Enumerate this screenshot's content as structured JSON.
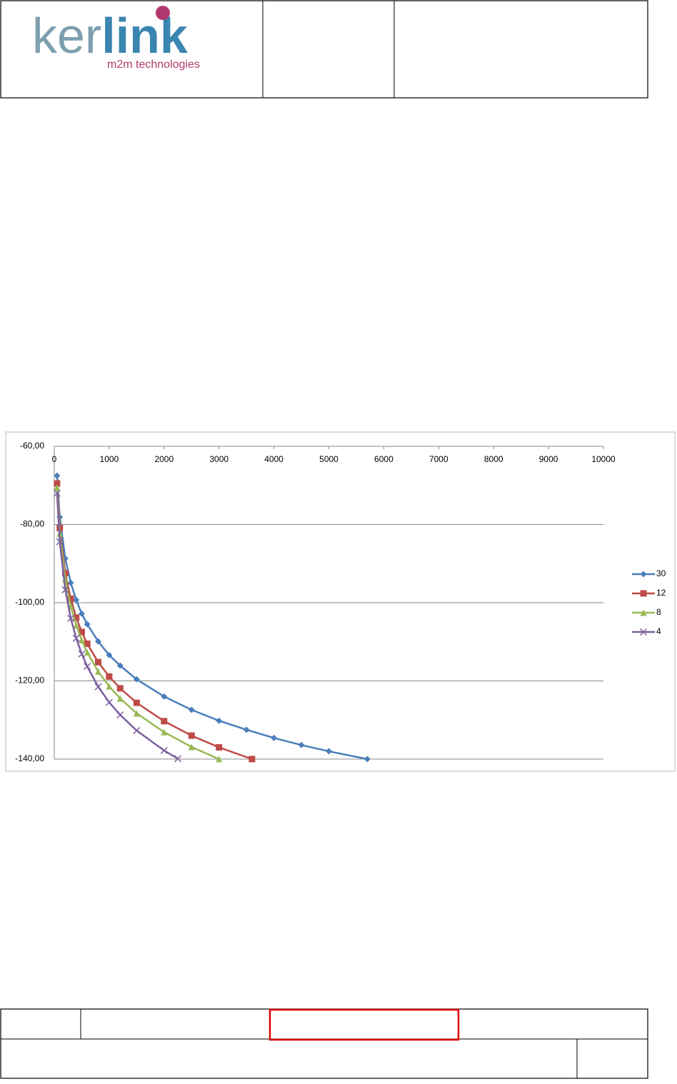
{
  "header": {
    "logo": [
      "ker",
      "link"
    ],
    "tagline": "m2m technologies"
  },
  "chart_data": {
    "type": "line",
    "xaxis_position": "top",
    "grid": true,
    "legend": "right",
    "xlim": [
      0,
      10000
    ],
    "xticks": [
      0,
      1000,
      2000,
      3000,
      4000,
      5000,
      6000,
      7000,
      8000,
      9000,
      10000
    ],
    "ylim": [
      -140,
      -60
    ],
    "yticks": [
      {
        "value": -60,
        "label": "-60,00"
      },
      {
        "value": -80,
        "label": "-80,00"
      },
      {
        "value": -100,
        "label": "-100,00"
      },
      {
        "value": -120,
        "label": "-120,00"
      },
      {
        "value": -140,
        "label": "-140,00"
      }
    ],
    "series": [
      {
        "name": "30",
        "color": "#4a7ebb",
        "marker": "diamond",
        "x": [
          50,
          100,
          200,
          300,
          400,
          500,
          600,
          800,
          1000,
          1200,
          1500,
          2000,
          2500,
          3000,
          3500,
          4000,
          4500,
          5000,
          5700
        ],
        "values": [
          -67.5,
          -78.1,
          -88.7,
          -94.9,
          -99.3,
          -102.8,
          -105.5,
          -109.9,
          -113.4,
          -116.1,
          -119.6,
          -124.0,
          -127.4,
          -130.2,
          -132.5,
          -134.6,
          -136.4,
          -138.0,
          -140.0
        ]
      },
      {
        "name": "12",
        "color": "#be4b48",
        "marker": "square",
        "x": [
          50,
          100,
          200,
          300,
          400,
          500,
          600,
          800,
          1000,
          1200,
          1500,
          2000,
          2500,
          3000,
          3600
        ],
        "values": [
          -69.5,
          -80.9,
          -92.4,
          -99.0,
          -103.8,
          -107.5,
          -110.5,
          -115.2,
          -118.9,
          -121.9,
          -125.6,
          -130.3,
          -134.0,
          -137.0,
          -140.0
        ]
      },
      {
        "name": "8",
        "color": "#98b954",
        "marker": "triangle",
        "x": [
          50,
          100,
          200,
          300,
          400,
          500,
          600,
          800,
          1000,
          1200,
          1500,
          2000,
          2500,
          3000
        ],
        "values": [
          -70.5,
          -82.3,
          -94.0,
          -100.9,
          -105.8,
          -109.6,
          -112.7,
          -117.6,
          -121.4,
          -124.5,
          -128.3,
          -133.1,
          -136.9,
          -140.0
        ]
      },
      {
        "name": "4",
        "color": "#7d60a0",
        "marker": "cross",
        "x": [
          50,
          100,
          200,
          300,
          400,
          500,
          600,
          800,
          1000,
          1200,
          1500,
          2000,
          2250
        ],
        "values": [
          -72.0,
          -84.4,
          -96.7,
          -104.0,
          -109.1,
          -113.1,
          -116.3,
          -121.5,
          -125.5,
          -128.7,
          -132.7,
          -137.8,
          -139.9
        ]
      }
    ]
  }
}
